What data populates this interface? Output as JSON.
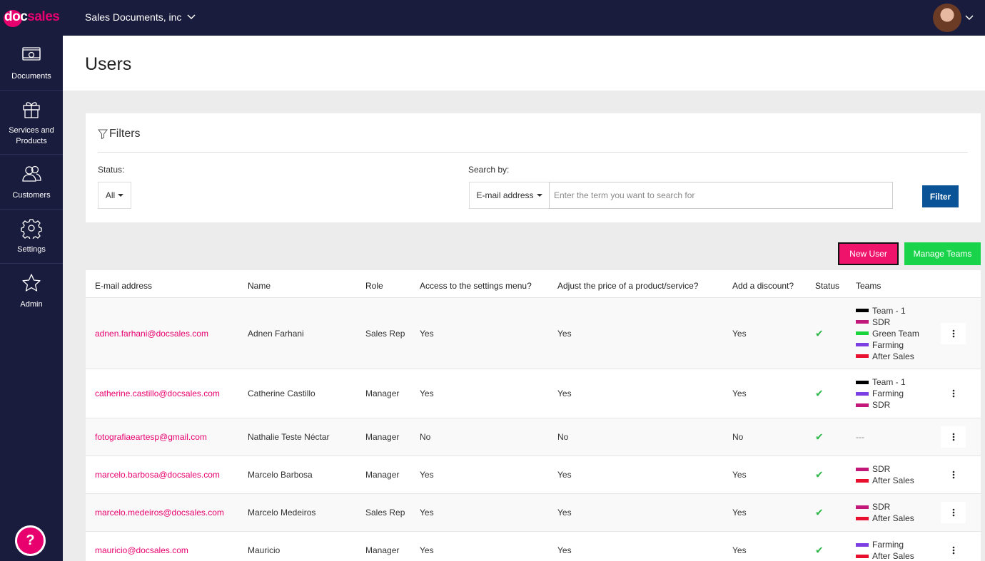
{
  "brand": {
    "doc": "doc",
    "sales": "sales"
  },
  "company": "Sales Documents, inc",
  "sidebar": [
    {
      "label": "Documents",
      "icon": "money-icon"
    },
    {
      "label": "Services and Products",
      "icon": "gift-icon"
    },
    {
      "label": "Customers",
      "icon": "users-icon"
    },
    {
      "label": "Settings",
      "icon": "gear-icon"
    },
    {
      "label": "Admin",
      "icon": "star-icon"
    }
  ],
  "help_label": "?",
  "page_title": "Users",
  "filters": {
    "title": "Filters",
    "status_label": "Status:",
    "status_value": "All",
    "search_by_label": "Search by:",
    "search_by_value": "E-mail address",
    "search_placeholder": "Enter the term you want to search for",
    "filter_button": "Filter"
  },
  "actions": {
    "new_user": "New User",
    "manage_teams": "Manage Teams"
  },
  "table": {
    "headers": [
      "E-mail address",
      "Name",
      "Role",
      "Access to the settings menu?",
      "Adjust the price of a product/service?",
      "Add a discount?",
      "Status",
      "Teams"
    ],
    "rows": [
      {
        "email": "adnen.farhani@docsales.com",
        "name": "Adnen Farhani",
        "role": "Sales Rep",
        "access": "Yes",
        "price": "Yes",
        "discount": "Yes",
        "status": "✔",
        "teams": [
          {
            "name": "Team - 1",
            "color": "#000000"
          },
          {
            "name": "SDR",
            "color": "#c2187a"
          },
          {
            "name": "Green Team",
            "color": "#19d43a"
          },
          {
            "name": "Farming",
            "color": "#7b3fe4"
          },
          {
            "name": "After Sales",
            "color": "#e8102e"
          }
        ]
      },
      {
        "email": "catherine.castillo@docsales.com",
        "name": "Catherine Castillo",
        "role": "Manager",
        "access": "Yes",
        "price": "Yes",
        "discount": "Yes",
        "status": "✔",
        "teams": [
          {
            "name": "Team - 1",
            "color": "#000000"
          },
          {
            "name": "Farming",
            "color": "#7b3fe4"
          },
          {
            "name": "SDR",
            "color": "#c2187a"
          }
        ]
      },
      {
        "email": "fotografiaeartesp@gmail.com",
        "name": "Nathalie Teste Néctar",
        "role": "Manager",
        "access": "No",
        "price": "No",
        "discount": "No",
        "status": "✔",
        "teams_text": "---",
        "teams": []
      },
      {
        "email": "marcelo.barbosa@docsales.com",
        "name": "Marcelo Barbosa",
        "role": "Manager",
        "access": "Yes",
        "price": "Yes",
        "discount": "Yes",
        "status": "✔",
        "teams": [
          {
            "name": "SDR",
            "color": "#c2187a"
          },
          {
            "name": "After Sales",
            "color": "#e8102e"
          }
        ]
      },
      {
        "email": "marcelo.medeiros@docsales.com",
        "name": "Marcelo Medeiros",
        "role": "Sales Rep",
        "access": "Yes",
        "price": "Yes",
        "discount": "Yes",
        "status": "✔",
        "teams": [
          {
            "name": "SDR",
            "color": "#c2187a"
          },
          {
            "name": "After Sales",
            "color": "#e8102e"
          }
        ]
      },
      {
        "email": "mauricio@docsales.com",
        "name": "Mauricio",
        "role": "Manager",
        "access": "Yes",
        "price": "Yes",
        "discount": "Yes",
        "status": "✔",
        "teams": [
          {
            "name": "Farming",
            "color": "#7b3fe4"
          },
          {
            "name": "After Sales",
            "color": "#e8102e"
          }
        ]
      }
    ]
  },
  "colors": {
    "navy": "#1a1c3d",
    "brand_pink": "#e8006f",
    "new_user_bg": "#f0136c",
    "manage_teams_bg": "#19d44a",
    "filter_btn_bg": "#0a5396",
    "check_green": "#2fb84a"
  }
}
